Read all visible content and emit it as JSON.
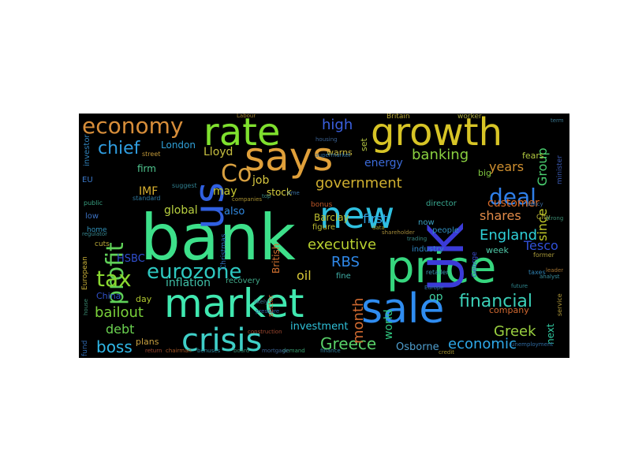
{
  "colors": {
    "background": "#000000",
    "page": "#ffffff"
  },
  "words": [
    {
      "text": "bank",
      "color": "#3de08a"
    },
    {
      "text": "market",
      "color": "#40e8b0"
    },
    {
      "text": "price",
      "color": "#36d67e"
    },
    {
      "text": "UK",
      "color": "#3b3bd8"
    },
    {
      "text": "sale",
      "color": "#2f8cf0"
    },
    {
      "text": "growth",
      "color": "#d7c426"
    },
    {
      "text": "rate",
      "color": "#7fe02e"
    },
    {
      "text": "says",
      "color": "#e0a03a"
    },
    {
      "text": "new",
      "color": "#2fc0e0"
    },
    {
      "text": "us",
      "color": "#3060e0"
    },
    {
      "text": "crisis",
      "color": "#3fd0c8"
    },
    {
      "text": "economy",
      "color": "#d88e3a"
    },
    {
      "text": "Co",
      "color": "#d8a040"
    },
    {
      "text": "profit",
      "color": "#5fd058"
    },
    {
      "text": "tax",
      "color": "#8ad830"
    },
    {
      "text": "eurozone",
      "color": "#2ec8c0"
    },
    {
      "text": "deal",
      "color": "#2f7fe8"
    },
    {
      "text": "financial",
      "color": "#3bd0b8"
    },
    {
      "text": "chief",
      "color": "#2f9de0"
    },
    {
      "text": "Greece",
      "color": "#58d068"
    },
    {
      "text": "boss",
      "color": "#30b8e8"
    },
    {
      "text": "bailout",
      "color": "#7ad03a"
    },
    {
      "text": "debt",
      "color": "#6ad050"
    },
    {
      "text": "economic",
      "color": "#2ea8e8"
    },
    {
      "text": "RBS",
      "color": "#2f88e8"
    },
    {
      "text": "executive",
      "color": "#b8d030"
    },
    {
      "text": "government",
      "color": "#d0b030"
    },
    {
      "text": "banking",
      "color": "#8ad040"
    },
    {
      "text": "high",
      "color": "#3b60e0"
    },
    {
      "text": "England",
      "color": "#2fd0d8"
    },
    {
      "text": "Greek",
      "color": "#9ad040"
    },
    {
      "text": "month",
      "color": "#d06a30"
    },
    {
      "text": "years",
      "color": "#d09030"
    },
    {
      "text": "shares",
      "color": "#e08a48"
    },
    {
      "text": "Group",
      "color": "#4ad070"
    },
    {
      "text": "since",
      "color": "#c0c828"
    },
    {
      "text": "Tesco",
      "color": "#3050d8"
    },
    {
      "text": "oil",
      "color": "#d8c838"
    },
    {
      "text": "inflation",
      "color": "#40c0a8"
    },
    {
      "text": "customer",
      "color": "#d86a28"
    },
    {
      "text": "Lloyd",
      "color": "#c8c040"
    },
    {
      "text": "IMF",
      "color": "#d8b030"
    },
    {
      "text": "global",
      "color": "#b8d040"
    },
    {
      "text": "first",
      "color": "#30a0e0"
    },
    {
      "text": "world",
      "color": "#30c880"
    },
    {
      "text": "job",
      "color": "#d8c840"
    },
    {
      "text": "stock",
      "color": "#d8d040"
    },
    {
      "text": "may",
      "color": "#c8c830"
    },
    {
      "text": "energy",
      "color": "#3b6ad8"
    },
    {
      "text": "HSBC",
      "color": "#3050d0"
    },
    {
      "text": "also",
      "color": "#3088e0"
    },
    {
      "text": "investment",
      "color": "#2fc0d8"
    },
    {
      "text": "Osborne",
      "color": "#50a0d0"
    },
    {
      "text": "op",
      "color": "#40d0a0"
    },
    {
      "text": "firm",
      "color": "#50c890"
    },
    {
      "text": "London",
      "color": "#30a0d8"
    },
    {
      "text": "British",
      "color": "#d07030"
    },
    {
      "text": "Barclay",
      "color": "#c0c030"
    },
    {
      "text": "next",
      "color": "#30c8a0"
    },
    {
      "text": "company",
      "color": "#d06830"
    },
    {
      "text": "fears",
      "color": "#b0c840"
    },
    {
      "text": "big",
      "color": "#80c840"
    },
    {
      "text": "week",
      "color": "#50c8a8"
    },
    {
      "text": "day",
      "color": "#b0c830"
    },
    {
      "text": "China",
      "color": "#3050c8"
    },
    {
      "text": "plans",
      "color": "#c8a040"
    },
    {
      "text": "recovery",
      "color": "#40a888"
    },
    {
      "text": "fine",
      "color": "#40b0a8"
    },
    {
      "text": "warns",
      "color": "#c8b840"
    },
    {
      "text": "set",
      "color": "#b0c040"
    },
    {
      "text": "industry",
      "color": "#3088c8"
    },
    {
      "text": "director",
      "color": "#3aa890"
    },
    {
      "text": "people",
      "color": "#3090c0"
    },
    {
      "text": "now",
      "color": "#3aa0c0"
    },
    {
      "text": "figure",
      "color": "#b8b830"
    },
    {
      "text": "low",
      "color": "#3b70c0"
    },
    {
      "text": "EU",
      "color": "#3b78c8"
    },
    {
      "text": "investor",
      "color": "#3080b8"
    },
    {
      "text": "European",
      "color": "#c8b038"
    },
    {
      "text": "home",
      "color": "#3090b8"
    },
    {
      "text": "cuts",
      "color": "#b8a838"
    },
    {
      "text": "Christmas",
      "color": "#3070c0"
    },
    {
      "text": "fund",
      "color": "#2f6ab0"
    },
    {
      "text": "City",
      "color": "#b0a838"
    },
    {
      "text": "George",
      "color": "#3a4ac8"
    },
    {
      "text": "sector",
      "color": "#c86030"
    },
    {
      "text": "Britain",
      "color": "#b8a838"
    },
    {
      "text": "worker",
      "color": "#a8a840"
    },
    {
      "text": "minister",
      "color": "#3a58b0"
    },
    {
      "text": "bonus",
      "color": "#c05828"
    },
    {
      "text": "service",
      "color": "#b09838"
    },
    {
      "text": "street",
      "color": "#c09838"
    },
    {
      "text": "retailer",
      "color": "#3a90b0"
    },
    {
      "text": "taxes",
      "color": "#2f80b0"
    },
    {
      "text": "former",
      "color": "#a89838"
    },
    {
      "text": "public",
      "color": "#38a080"
    },
    {
      "text": "suggest",
      "color": "#308090"
    },
    {
      "text": "standard",
      "color": "#2f7aa0"
    },
    {
      "text": "chairman",
      "color": "#a85828"
    },
    {
      "text": "bonuses",
      "color": "#3088a0"
    },
    {
      "text": "board",
      "color": "#3a8870"
    },
    {
      "text": "demand",
      "color": "#38a070"
    },
    {
      "text": "finance",
      "color": "#3080a0"
    },
    {
      "text": "unemployment",
      "color": "#2f6aa0"
    },
    {
      "text": "return",
      "color": "#a04830"
    },
    {
      "text": "house",
      "color": "#3a8870"
    },
    {
      "text": "Labour",
      "color": "#a08030"
    },
    {
      "text": "likely",
      "color": "#3a7890"
    },
    {
      "text": "mortgage",
      "color": "#3a6090"
    },
    {
      "text": "credit",
      "color": "#a09030"
    },
    {
      "text": "Europe",
      "color": "#2f70a0"
    },
    {
      "text": "leader",
      "color": "#a07030"
    },
    {
      "text": "future",
      "color": "#308890"
    },
    {
      "text": "analyst",
      "color": "#3a90a0"
    },
    {
      "text": "policy",
      "color": "#3a6aa0"
    },
    {
      "text": "strong",
      "color": "#3a8a70"
    },
    {
      "text": "pressure",
      "color": "#2f60a0"
    },
    {
      "text": "regulator",
      "color": "#388890"
    },
    {
      "text": "companies",
      "color": "#a89030"
    },
    {
      "text": "housing",
      "color": "#3a6090"
    },
    {
      "text": "supermarket",
      "color": "#2f70a0"
    },
    {
      "text": "shareholder",
      "color": "#a08838"
    },
    {
      "text": "trading",
      "color": "#388880"
    },
    {
      "text": "construction",
      "color": "#a04830"
    },
    {
      "text": "time",
      "color": "#3a70a0"
    },
    {
      "text": "data",
      "color": "#a0a030"
    },
    {
      "text": "term",
      "color": "#3a7890"
    },
    {
      "text": "top",
      "color": "#3a8880"
    }
  ]
}
